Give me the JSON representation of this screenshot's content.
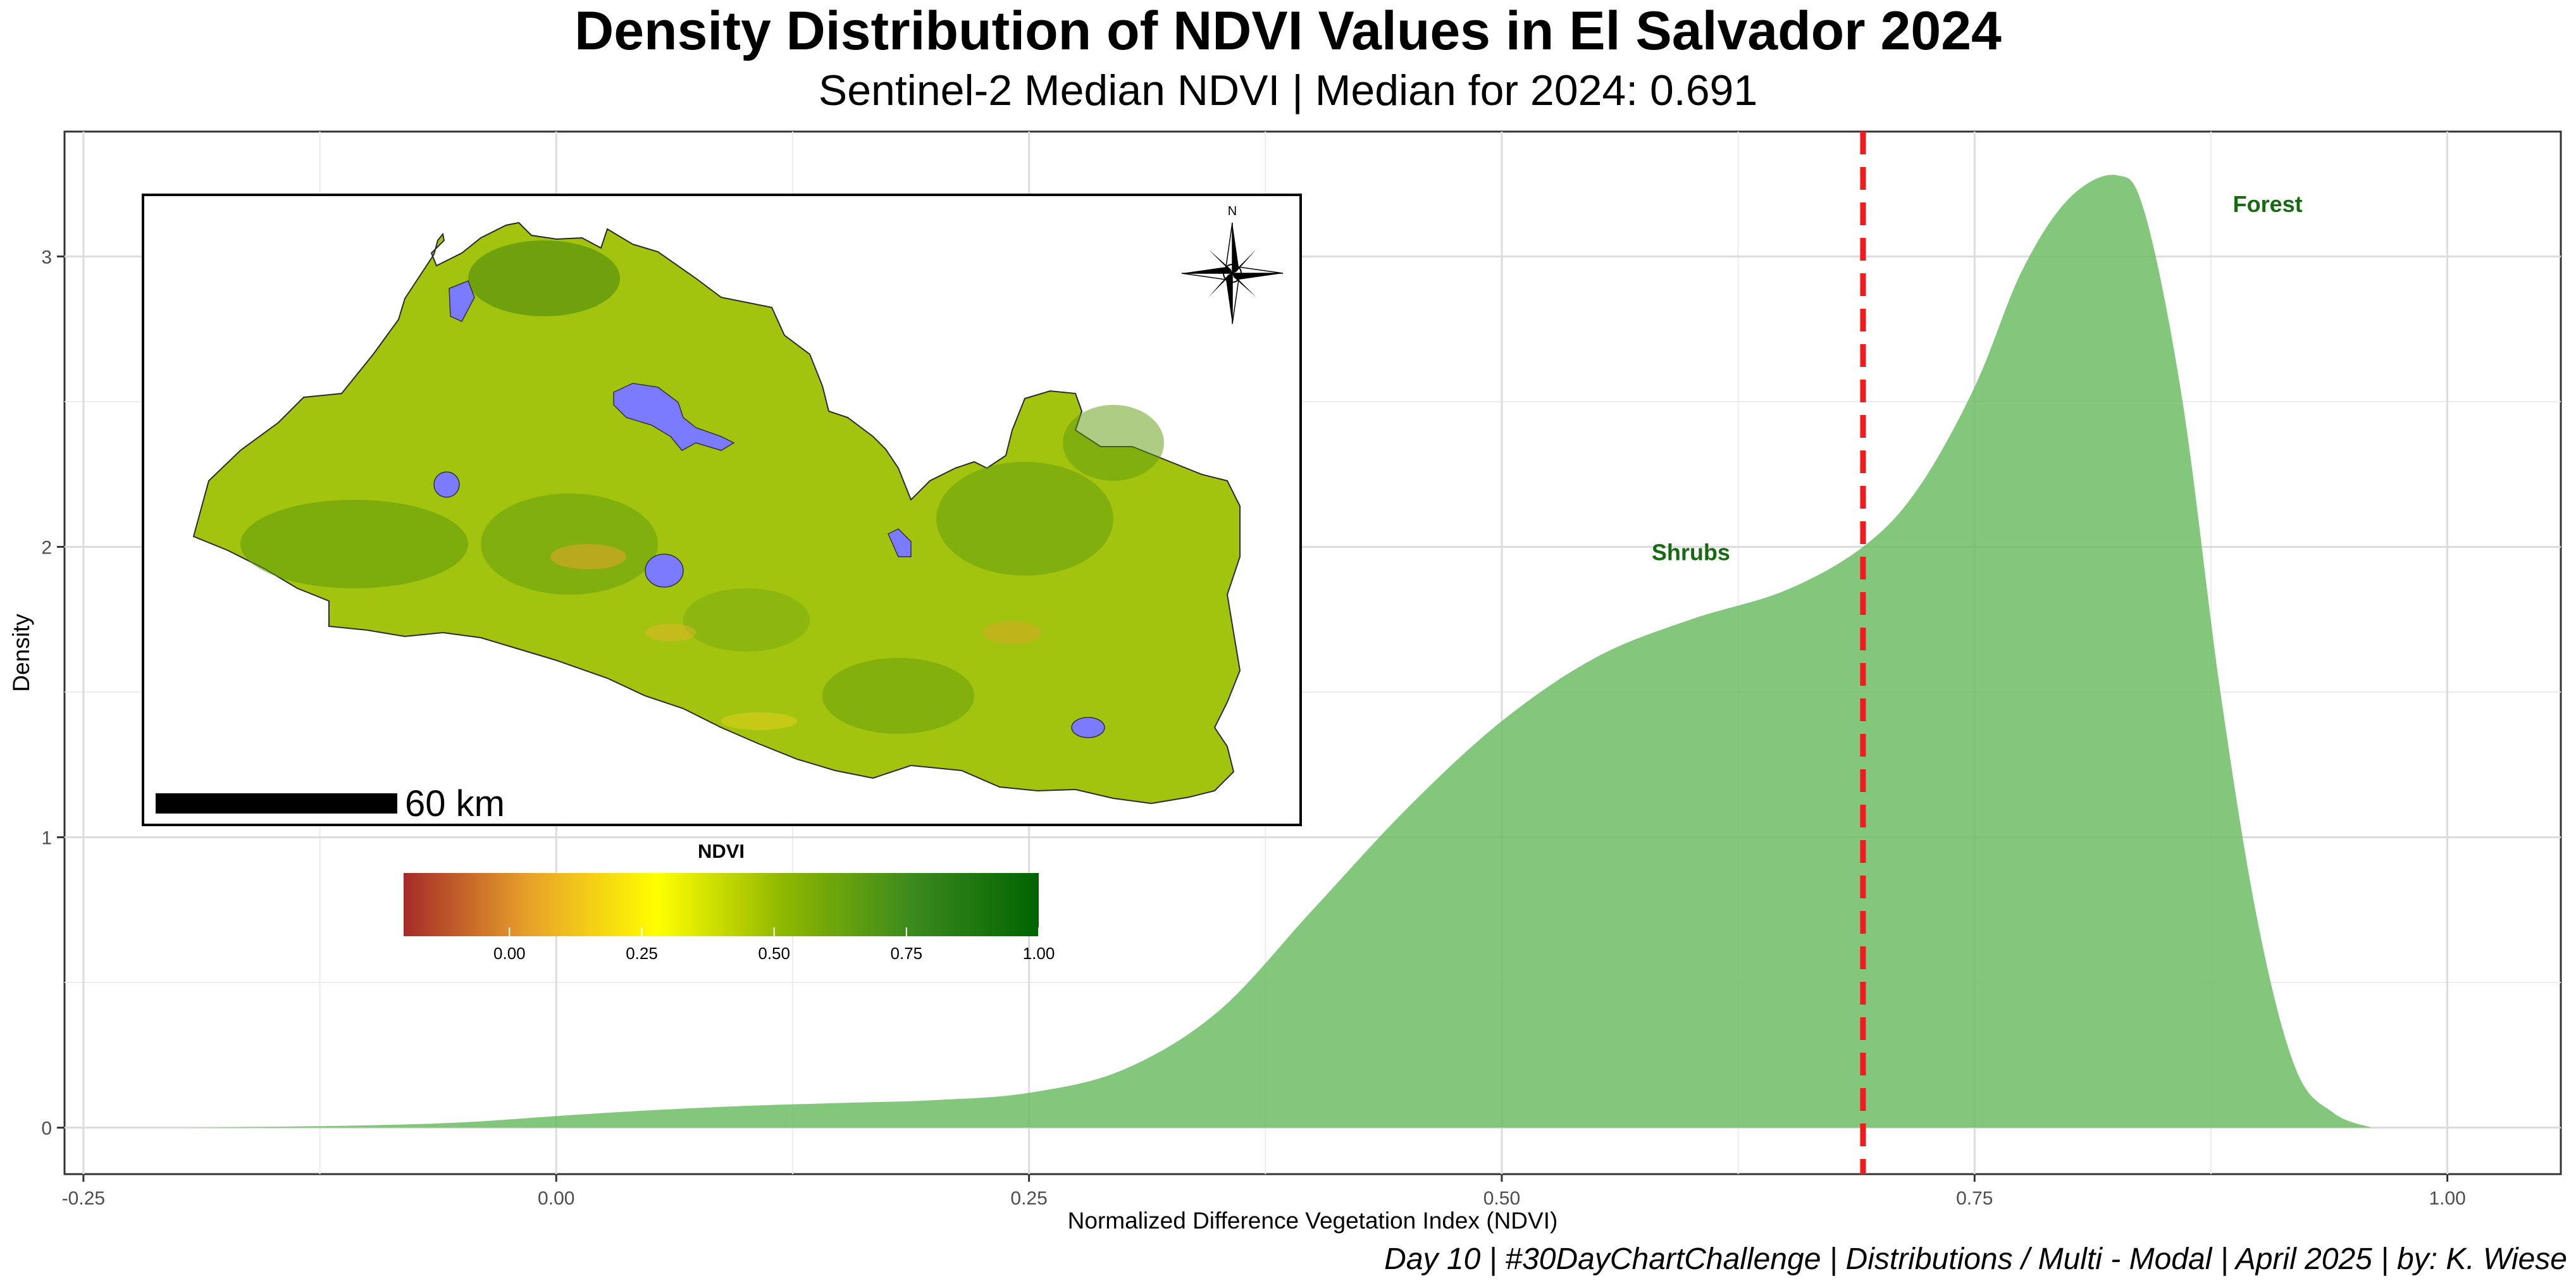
{
  "chart_data": {
    "type": "area",
    "title": "Density Distribution of NDVI Values in El Salvador 2024",
    "subtitle": "Sentinel-2 Median NDVI | Median for 2024: 0.691",
    "xlabel": "Normalized Difference Vegetation Index (NDVI)",
    "ylabel": "Density",
    "caption": "Day 10 | #30DayChartChallenge | Distributions / Multi - Modal | April 2025 | by: K. Wiese",
    "xlim": [
      -0.26,
      1.06
    ],
    "ylim": [
      -0.16,
      3.43
    ],
    "x_ticks": [
      -0.25,
      0.0,
      0.25,
      0.5,
      0.75,
      1.0
    ],
    "x_tick_labels": [
      "-0.25",
      "0.00",
      "0.25",
      "0.50",
      "0.75",
      "1.00"
    ],
    "y_ticks": [
      0,
      1,
      2,
      3
    ],
    "y_tick_labels": [
      "0",
      "1",
      "2",
      "3"
    ],
    "grid": true,
    "fill_color": "#66bb5e",
    "series": [
      {
        "x": [
          -0.2,
          -0.15,
          -0.1,
          -0.05,
          0.0,
          0.05,
          0.1,
          0.15,
          0.2,
          0.25,
          0.3,
          0.35,
          0.4,
          0.45,
          0.5,
          0.55,
          0.6,
          0.65,
          0.691,
          0.72,
          0.75,
          0.775,
          0.8,
          0.825,
          0.84,
          0.86,
          0.88,
          0.9,
          0.92,
          0.94,
          0.96
        ],
        "y": [
          0.0,
          0.003,
          0.008,
          0.018,
          0.04,
          0.06,
          0.075,
          0.085,
          0.095,
          0.12,
          0.2,
          0.4,
          0.75,
          1.1,
          1.4,
          1.62,
          1.75,
          1.85,
          2.0,
          2.2,
          2.55,
          2.95,
          3.2,
          3.28,
          3.15,
          2.5,
          1.5,
          0.7,
          0.2,
          0.05,
          0.0
        ]
      }
    ],
    "median_line": {
      "value": 0.691,
      "color": "#ee1c1c"
    },
    "annotations": [
      {
        "text": "Shrubs",
        "x": 0.6,
        "y": 1.98,
        "color": "#186a12"
      },
      {
        "text": "Forest",
        "x": 0.905,
        "y": 3.18,
        "color": "#186a12"
      }
    ]
  },
  "inset_map": {
    "water_color": "#7b7bff",
    "compass_label": "N",
    "scale_bar_label": "60 km"
  },
  "legend": {
    "title": "NDVI",
    "range": [
      -0.2,
      1.0
    ],
    "ticks": [
      0.0,
      0.25,
      0.5,
      0.75,
      1.0
    ],
    "tick_labels": [
      "0.00",
      "0.25",
      "0.50",
      "0.75",
      "1.00"
    ],
    "gradient": [
      "#a52a2a",
      "#e8a32a",
      "#ffff00",
      "#8db600",
      "#3c8a1e",
      "#006400"
    ]
  }
}
